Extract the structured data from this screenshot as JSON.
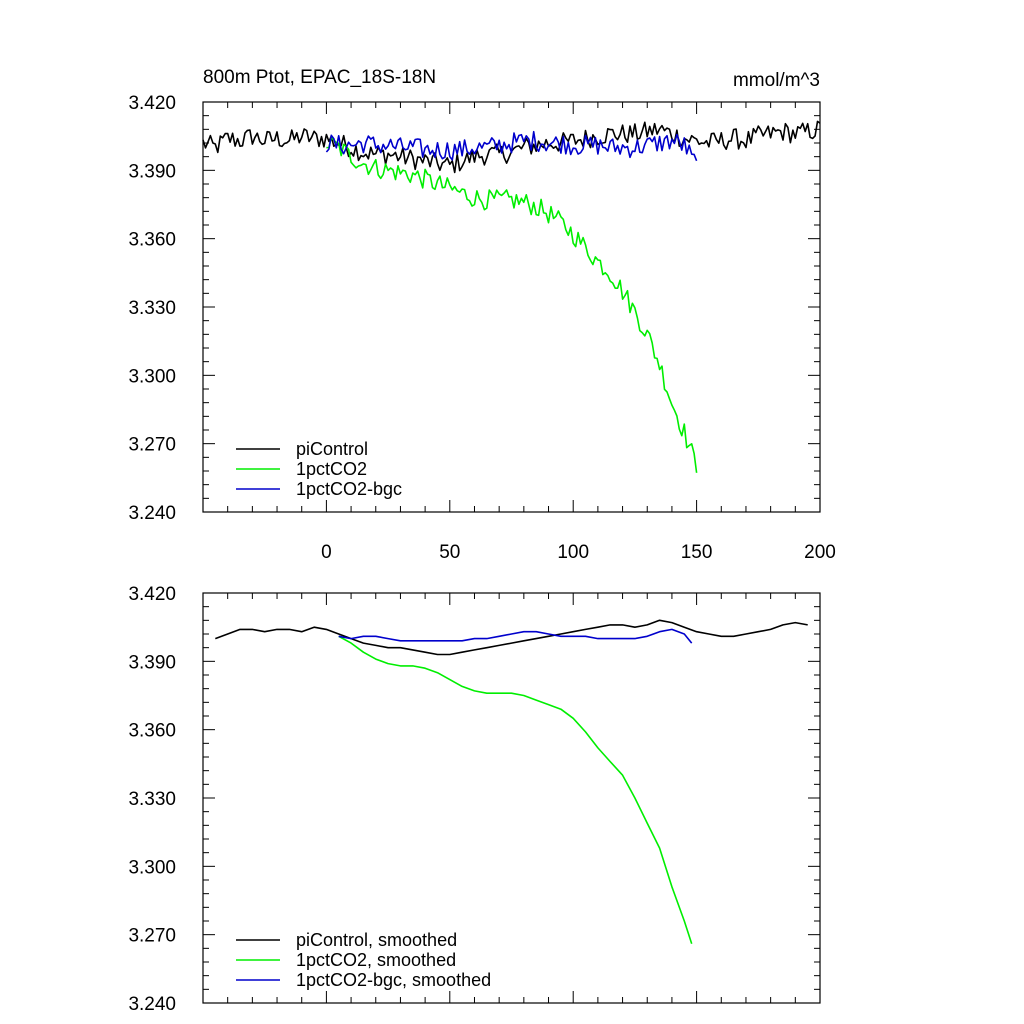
{
  "chart_data": [
    {
      "type": "line",
      "title": "800m Ptot, EPAC_18S-18N",
      "units": "mmol/m^3",
      "xlim": [
        -50,
        200
      ],
      "ylim": [
        3.24,
        3.42
      ],
      "xticks": [
        "0",
        "50",
        "100",
        "150",
        "200"
      ],
      "yticks": [
        "3.240",
        "3.270",
        "3.300",
        "3.330",
        "3.360",
        "3.390",
        "3.420"
      ],
      "legend": "bottom-left",
      "series": [
        {
          "name": "piControl",
          "color": "#000000",
          "x": [
            -50,
            -45,
            -40,
            -35,
            -30,
            -25,
            -20,
            -15,
            -10,
            -5,
            0,
            5,
            10,
            15,
            20,
            25,
            30,
            35,
            40,
            45,
            50,
            55,
            60,
            65,
            70,
            75,
            80,
            85,
            90,
            95,
            100,
            105,
            110,
            115,
            120,
            125,
            130,
            135,
            140,
            145,
            150,
            155,
            160,
            165,
            170,
            175,
            180,
            185,
            190,
            195,
            200
          ],
          "y": [
            3.402,
            3.4,
            3.404,
            3.403,
            3.405,
            3.403,
            3.404,
            3.403,
            3.405,
            3.404,
            3.404,
            3.402,
            3.4,
            3.398,
            3.397,
            3.397,
            3.396,
            3.395,
            3.394,
            3.393,
            3.392,
            3.394,
            3.396,
            3.397,
            3.397,
            3.398,
            3.4,
            3.401,
            3.402,
            3.402,
            3.403,
            3.404,
            3.405,
            3.406,
            3.406,
            3.406,
            3.407,
            3.408,
            3.406,
            3.404,
            3.403,
            3.402,
            3.403,
            3.404,
            3.403,
            3.405,
            3.406,
            3.407,
            3.406,
            3.407,
            3.408
          ]
        },
        {
          "name": "1pctCO2",
          "color": "#00ee00",
          "x": [
            0,
            5,
            10,
            15,
            20,
            25,
            30,
            35,
            40,
            45,
            50,
            55,
            60,
            65,
            70,
            75,
            80,
            85,
            90,
            95,
            100,
            105,
            110,
            115,
            120,
            125,
            130,
            135,
            140,
            145,
            150
          ],
          "y": [
            3.402,
            3.4,
            3.396,
            3.393,
            3.391,
            3.39,
            3.389,
            3.388,
            3.386,
            3.384,
            3.382,
            3.38,
            3.378,
            3.377,
            3.377,
            3.377,
            3.376,
            3.374,
            3.371,
            3.367,
            3.362,
            3.356,
            3.35,
            3.345,
            3.337,
            3.328,
            3.318,
            3.305,
            3.288,
            3.275,
            3.26
          ]
        },
        {
          "name": "1pctCO2-bgc",
          "color": "#0000cc",
          "x": [
            0,
            5,
            10,
            15,
            20,
            25,
            30,
            35,
            40,
            45,
            50,
            55,
            60,
            65,
            70,
            75,
            80,
            85,
            90,
            95,
            100,
            105,
            110,
            115,
            120,
            125,
            130,
            135,
            140,
            145,
            150
          ],
          "y": [
            3.402,
            3.401,
            3.401,
            3.402,
            3.401,
            3.401,
            3.4,
            3.4,
            3.399,
            3.399,
            3.399,
            3.399,
            3.4,
            3.4,
            3.401,
            3.402,
            3.403,
            3.403,
            3.402,
            3.402,
            3.401,
            3.401,
            3.401,
            3.4,
            3.4,
            3.4,
            3.401,
            3.402,
            3.403,
            3.401,
            3.392
          ]
        }
      ]
    },
    {
      "type": "line",
      "xlim": [
        -50,
        200
      ],
      "ylim": [
        3.24,
        3.42
      ],
      "yticks": [
        "3.240",
        "3.270",
        "3.300",
        "3.330",
        "3.360",
        "3.390",
        "3.420"
      ],
      "legend": "bottom-left",
      "series": [
        {
          "name": "piControl, smoothed",
          "color": "#000000",
          "x": [
            -45,
            -40,
            -35,
            -30,
            -25,
            -20,
            -15,
            -10,
            -5,
            0,
            5,
            10,
            15,
            20,
            25,
            30,
            35,
            40,
            45,
            50,
            55,
            60,
            65,
            70,
            75,
            80,
            85,
            90,
            95,
            100,
            105,
            110,
            115,
            120,
            125,
            130,
            135,
            140,
            145,
            150,
            155,
            160,
            165,
            170,
            175,
            180,
            185,
            190,
            195
          ],
          "y": [
            3.4,
            3.402,
            3.404,
            3.404,
            3.403,
            3.404,
            3.404,
            3.403,
            3.405,
            3.404,
            3.402,
            3.4,
            3.398,
            3.397,
            3.396,
            3.396,
            3.395,
            3.394,
            3.393,
            3.393,
            3.394,
            3.395,
            3.396,
            3.397,
            3.398,
            3.399,
            3.4,
            3.401,
            3.402,
            3.403,
            3.404,
            3.405,
            3.406,
            3.406,
            3.405,
            3.406,
            3.408,
            3.407,
            3.405,
            3.403,
            3.402,
            3.401,
            3.401,
            3.402,
            3.403,
            3.404,
            3.406,
            3.407,
            3.406
          ]
        },
        {
          "name": "1pctCO2, smoothed",
          "color": "#00ee00",
          "x": [
            5,
            10,
            15,
            20,
            25,
            30,
            35,
            40,
            45,
            50,
            55,
            60,
            65,
            70,
            75,
            80,
            85,
            90,
            95,
            100,
            105,
            110,
            115,
            120,
            125,
            130,
            135,
            140,
            145,
            148
          ],
          "y": [
            3.401,
            3.398,
            3.394,
            3.391,
            3.389,
            3.388,
            3.388,
            3.387,
            3.385,
            3.382,
            3.379,
            3.377,
            3.376,
            3.376,
            3.376,
            3.375,
            3.373,
            3.371,
            3.369,
            3.365,
            3.359,
            3.352,
            3.346,
            3.34,
            3.33,
            3.319,
            3.308,
            3.291,
            3.276,
            3.266
          ]
        },
        {
          "name": "1pctCO2-bgc, smoothed",
          "color": "#0000cc",
          "x": [
            5,
            10,
            15,
            20,
            25,
            30,
            35,
            40,
            45,
            50,
            55,
            60,
            65,
            70,
            75,
            80,
            85,
            90,
            95,
            100,
            105,
            110,
            115,
            120,
            125,
            130,
            135,
            140,
            145,
            148
          ],
          "y": [
            3.401,
            3.4,
            3.401,
            3.401,
            3.4,
            3.399,
            3.399,
            3.399,
            3.399,
            3.399,
            3.399,
            3.4,
            3.4,
            3.401,
            3.402,
            3.403,
            3.403,
            3.402,
            3.401,
            3.401,
            3.401,
            3.4,
            3.4,
            3.4,
            3.4,
            3.401,
            3.403,
            3.404,
            3.402,
            3.398
          ]
        }
      ]
    }
  ]
}
